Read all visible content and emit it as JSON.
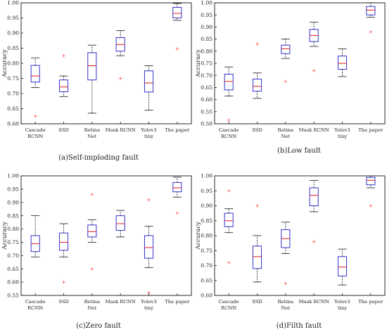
{
  "chart_data": [
    {
      "type": "box",
      "caption": "(a)Self-imploding fault",
      "ylabel": "Accuracy",
      "ylim": [
        0.6,
        1.0
      ],
      "yticks": [
        "0.60",
        "0.65",
        "0.70",
        "0.75",
        "0.80",
        "0.85",
        "0.90",
        "0.95",
        "1.00"
      ],
      "categories": [
        [
          "Cascade",
          "RCNN"
        ],
        [
          "SSD"
        ],
        [
          "Retina",
          "Net"
        ],
        [
          "Mask RCNN"
        ],
        [
          "Yolov3",
          "tiny"
        ],
        [
          "The paper"
        ]
      ],
      "boxes": [
        {
          "whislo": 0.72,
          "q1": 0.738,
          "med": 0.758,
          "q3": 0.793,
          "whishi": 0.818,
          "fliers": [
            0.625
          ]
        },
        {
          "whislo": 0.69,
          "q1": 0.706,
          "med": 0.722,
          "q3": 0.745,
          "whishi": 0.758,
          "fliers": [
            0.825
          ]
        },
        {
          "whislo": 0.635,
          "q1": 0.745,
          "med": 0.792,
          "q3": 0.835,
          "whishi": 0.86,
          "fliers": []
        },
        {
          "whislo": 0.825,
          "q1": 0.84,
          "med": 0.862,
          "q3": 0.885,
          "whishi": 0.908,
          "fliers": [
            0.75
          ]
        },
        {
          "whislo": 0.645,
          "q1": 0.705,
          "med": 0.735,
          "q3": 0.775,
          "whishi": 0.792,
          "fliers": []
        },
        {
          "whislo": 0.942,
          "q1": 0.95,
          "med": 0.965,
          "q3": 0.985,
          "whishi": 0.998,
          "fliers": [
            0.848
          ]
        }
      ]
    },
    {
      "type": "box",
      "caption": "(b)Low fault",
      "ylabel": "Accuracy",
      "ylim": [
        0.5,
        1.0
      ],
      "yticks": [
        "0.50",
        "0.55",
        "0.60",
        "0.65",
        "0.70",
        "0.75",
        "0.80",
        "0.85",
        "0.90",
        "0.95",
        "1.00"
      ],
      "categories": [
        [
          "Cascade",
          "RCNN"
        ],
        [
          "SSD"
        ],
        [
          "Retina",
          "Net"
        ],
        [
          "Mask RCNN"
        ],
        [
          "Yolov3",
          "tiny"
        ],
        [
          "The paper"
        ]
      ],
      "boxes": [
        {
          "whislo": 0.615,
          "q1": 0.64,
          "med": 0.675,
          "q3": 0.705,
          "whishi": 0.735,
          "fliers": [
            0.515
          ]
        },
        {
          "whislo": 0.605,
          "q1": 0.635,
          "med": 0.655,
          "q3": 0.685,
          "whishi": 0.71,
          "fliers": [
            0.83
          ]
        },
        {
          "whislo": 0.77,
          "q1": 0.79,
          "med": 0.81,
          "q3": 0.825,
          "whishi": 0.85,
          "fliers": [
            0.675
          ]
        },
        {
          "whislo": 0.82,
          "q1": 0.84,
          "med": 0.865,
          "q3": 0.89,
          "whishi": 0.92,
          "fliers": [
            0.72
          ]
        },
        {
          "whislo": 0.695,
          "q1": 0.725,
          "med": 0.75,
          "q3": 0.78,
          "whishi": 0.81,
          "fliers": []
        },
        {
          "whislo": 0.94,
          "q1": 0.95,
          "med": 0.97,
          "q3": 0.985,
          "whishi": 1.0,
          "fliers": [
            0.88
          ]
        }
      ]
    },
    {
      "type": "box",
      "caption": "(c)Zero fault",
      "ylabel": "Accuracy",
      "ylim": [
        0.55,
        1.0
      ],
      "yticks": [
        "0.55",
        "0.60",
        "0.65",
        "0.70",
        "0.75",
        "0.80",
        "0.85",
        "0.90",
        "0.95",
        "1.00"
      ],
      "categories": [
        [
          "Cascade",
          "RCNN"
        ],
        [
          "SSD"
        ],
        [
          "Retina",
          "Net"
        ],
        [
          "Mask RCNN"
        ],
        [
          "Yolov3",
          "tiny"
        ],
        [
          "The paper"
        ]
      ],
      "boxes": [
        {
          "whislo": 0.695,
          "q1": 0.715,
          "med": 0.745,
          "q3": 0.775,
          "whishi": 0.85,
          "fliers": []
        },
        {
          "whislo": 0.695,
          "q1": 0.72,
          "med": 0.75,
          "q3": 0.785,
          "whishi": 0.82,
          "fliers": [
            0.6
          ]
        },
        {
          "whislo": 0.75,
          "q1": 0.77,
          "med": 0.79,
          "q3": 0.815,
          "whishi": 0.835,
          "fliers": [
            0.93,
            0.65
          ]
        },
        {
          "whislo": 0.77,
          "q1": 0.795,
          "med": 0.82,
          "q3": 0.85,
          "whishi": 0.87,
          "fliers": []
        },
        {
          "whislo": 0.655,
          "q1": 0.69,
          "med": 0.73,
          "q3": 0.775,
          "whishi": 0.81,
          "fliers": [
            0.91,
            0.56
          ]
        },
        {
          "whislo": 0.92,
          "q1": 0.94,
          "med": 0.955,
          "q3": 0.975,
          "whishi": 0.995,
          "fliers": [
            0.86
          ]
        }
      ]
    },
    {
      "type": "box",
      "caption": "(d)Filth fault",
      "ylabel": "Accuracy",
      "ylim": [
        0.6,
        1.0
      ],
      "yticks": [
        "0.60",
        "0.65",
        "0.70",
        "0.75",
        "0.80",
        "0.85",
        "0.90",
        "0.95",
        "1.00"
      ],
      "categories": [
        [
          "Cascade",
          "RCNN"
        ],
        [
          "SSD"
        ],
        [
          "Retina",
          "Net"
        ],
        [
          "Mask RCNN"
        ],
        [
          "Yolov3",
          "tiny"
        ],
        [
          "The paper"
        ]
      ],
      "boxes": [
        {
          "whislo": 0.81,
          "q1": 0.83,
          "med": 0.85,
          "q3": 0.875,
          "whishi": 0.89,
          "fliers": [
            0.95,
            0.71
          ]
        },
        {
          "whislo": 0.645,
          "q1": 0.69,
          "med": 0.73,
          "q3": 0.765,
          "whishi": 0.8,
          "fliers": [
            0.9
          ]
        },
        {
          "whislo": 0.74,
          "q1": 0.76,
          "med": 0.79,
          "q3": 0.82,
          "whishi": 0.845,
          "fliers": [
            0.64
          ]
        },
        {
          "whislo": 0.88,
          "q1": 0.9,
          "med": 0.935,
          "q3": 0.96,
          "whishi": 0.985,
          "fliers": [
            0.78
          ]
        },
        {
          "whislo": 0.635,
          "q1": 0.665,
          "med": 0.695,
          "q3": 0.73,
          "whishi": 0.755,
          "fliers": []
        },
        {
          "whislo": 0.96,
          "q1": 0.97,
          "med": 0.985,
          "q3": 0.995,
          "whishi": 1.0,
          "fliers": [
            0.9
          ]
        }
      ]
    }
  ],
  "colors": {
    "box": "#3333cc",
    "median": "#e03030",
    "whisker": "#111111",
    "flier": "#ff6666",
    "axes": "#111111"
  }
}
